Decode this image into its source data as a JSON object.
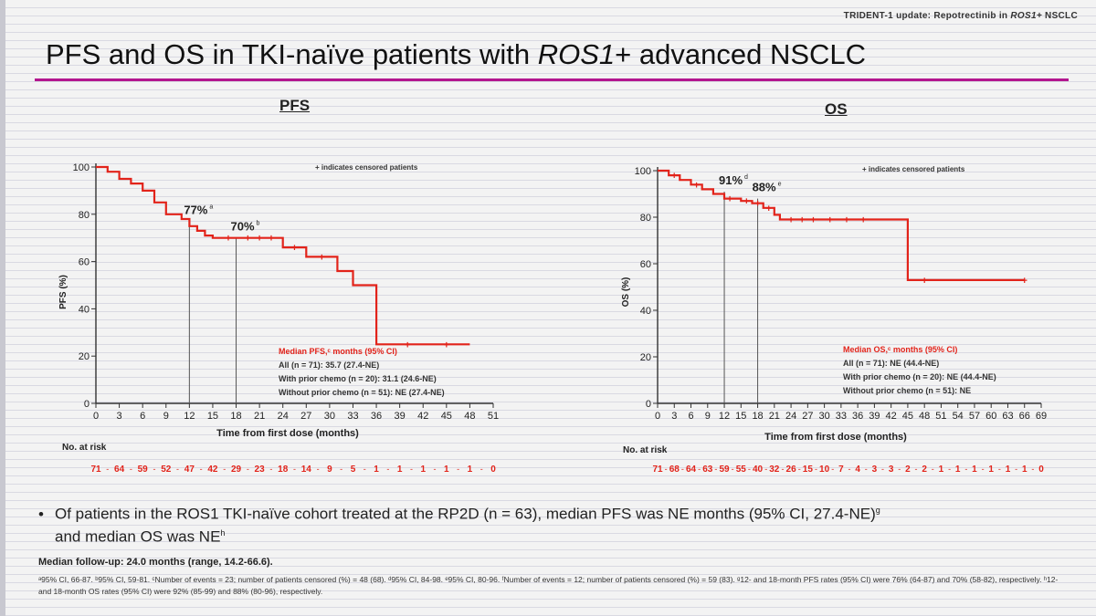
{
  "header": {
    "text_prefix": "TRIDENT-1 update: Repotrectinib in ",
    "text_italic": "ROS1+",
    "text_suffix": " NSCLC"
  },
  "title": {
    "prefix": "PFS and OS in TKI-naïve patients with ",
    "italic": "ROS1",
    "suffix": "+ advanced NSCLC"
  },
  "colors": {
    "curve": "#e2231a",
    "accent_rule": "#b3168f",
    "axis": "#333333"
  },
  "chart_data": [
    {
      "type": "line",
      "panel_title": "PFS",
      "ylabel": "PFS (%)",
      "xlabel": "Time from first dose (months)",
      "xticks": [
        0,
        3,
        6,
        9,
        12,
        15,
        18,
        21,
        24,
        27,
        30,
        33,
        36,
        39,
        42,
        45,
        48,
        51
      ],
      "yticks": [
        0,
        20,
        40,
        60,
        80,
        100
      ],
      "xlim": [
        0,
        51
      ],
      "ylim": [
        0,
        100
      ],
      "censor_note": "+ indicates censored patients",
      "x": [
        0,
        1.5,
        1.5,
        3,
        3,
        4.5,
        4.5,
        6,
        6,
        7.5,
        7.5,
        9,
        9,
        11,
        11,
        12,
        12,
        13,
        13,
        14,
        14,
        15,
        15,
        24,
        24,
        27,
        27,
        31,
        31,
        33,
        33,
        36,
        36,
        48
      ],
      "y": [
        100,
        100,
        98,
        98,
        95,
        95,
        93,
        93,
        90,
        90,
        85,
        85,
        80,
        80,
        78,
        78,
        75,
        75,
        73,
        73,
        71,
        71,
        70,
        70,
        66,
        66,
        62,
        62,
        56,
        56,
        50,
        50,
        25,
        25
      ],
      "censored": [
        {
          "x": 17,
          "y": 70
        },
        {
          "x": 19.5,
          "y": 70
        },
        {
          "x": 21,
          "y": 70
        },
        {
          "x": 22.5,
          "y": 70
        },
        {
          "x": 25.5,
          "y": 66
        },
        {
          "x": 29,
          "y": 62
        },
        {
          "x": 40,
          "y": 25
        },
        {
          "x": 45,
          "y": 25
        }
      ],
      "annotations": [
        {
          "text": "77%",
          "sup": "a",
          "x": 12,
          "y": 77,
          "line": true
        },
        {
          "text": "70%",
          "sup": "b",
          "x": 18,
          "y": 70,
          "line": true
        }
      ],
      "median_box": {
        "title": "Median PFS,ᶜ months (95% CI)",
        "rows": [
          "All (n = 71): 35.7 (27.4-NE)",
          "With prior chemo (n = 20): 31.1 (24.6-NE)",
          "Without prior chemo (n = 51): NE (27.4-NE)"
        ]
      },
      "risk_label": "No. at risk",
      "at_risk": [
        "71",
        "64",
        "59",
        "52",
        "47",
        "42",
        "29",
        "23",
        "18",
        "14",
        "9",
        "5",
        "1",
        "1",
        "1",
        "1",
        "1",
        "0"
      ]
    },
    {
      "type": "line",
      "panel_title": "OS",
      "ylabel": "OS (%)",
      "xlabel": "Time from first dose (months)",
      "xticks": [
        0,
        3,
        6,
        9,
        12,
        15,
        18,
        21,
        24,
        27,
        30,
        33,
        36,
        39,
        42,
        45,
        48,
        51,
        54,
        57,
        60,
        63,
        66,
        69
      ],
      "yticks": [
        0,
        20,
        40,
        60,
        80,
        100
      ],
      "xlim": [
        0,
        69
      ],
      "ylim": [
        0,
        100
      ],
      "censor_note": "+ indicates censored patients",
      "x": [
        0,
        2,
        2,
        4,
        4,
        6,
        6,
        8,
        8,
        10,
        10,
        12,
        12,
        15,
        15,
        17,
        17,
        19,
        19,
        21,
        21,
        22,
        22,
        45,
        45,
        66
      ],
      "y": [
        100,
        100,
        98,
        98,
        96,
        96,
        94,
        94,
        92,
        92,
        90,
        90,
        88,
        88,
        87,
        87,
        86,
        86,
        84,
        84,
        81,
        81,
        79,
        79,
        53,
        53
      ],
      "censored": [
        {
          "x": 3,
          "y": 98
        },
        {
          "x": 7,
          "y": 94
        },
        {
          "x": 13,
          "y": 88
        },
        {
          "x": 16,
          "y": 87
        },
        {
          "x": 18,
          "y": 86
        },
        {
          "x": 20,
          "y": 84
        },
        {
          "x": 24,
          "y": 79
        },
        {
          "x": 26,
          "y": 79
        },
        {
          "x": 28,
          "y": 79
        },
        {
          "x": 31,
          "y": 79
        },
        {
          "x": 34,
          "y": 79
        },
        {
          "x": 37,
          "y": 79
        },
        {
          "x": 48,
          "y": 53
        },
        {
          "x": 66,
          "y": 53
        }
      ],
      "annotations": [
        {
          "text": "91%",
          "sup": "d",
          "x": 12,
          "y": 91,
          "line": true
        },
        {
          "text": "88%",
          "sup": "e",
          "x": 18,
          "y": 88,
          "line": true
        }
      ],
      "median_box": {
        "title": "Median OS,ᶜ months (95% CI)",
        "rows": [
          "All (n = 71): NE (44.4-NE)",
          "With prior chemo (n = 20): NE (44.4-NE)",
          "Without prior chemo (n = 51): NE"
        ]
      },
      "risk_label": "No. at risk",
      "at_risk": [
        "71",
        "68",
        "64",
        "63",
        "59",
        "55",
        "40",
        "32",
        "26",
        "15",
        "10",
        "7",
        "4",
        "3",
        "3",
        "2",
        "2",
        "1",
        "1",
        "1",
        "1",
        "1",
        "1",
        "0"
      ]
    }
  ],
  "bullet": {
    "text1": "Of patients in the ROS1 TKI-naïve cohort treated at the RP2D (n = 63), median PFS was NE months (95% CI, 27.4-NE)",
    "sup1": "g",
    "text2": "and median OS was NE",
    "sup2": "h"
  },
  "followup": "Median follow-up: 24.0 months (range, 14.2-66.6).",
  "footnote": "ᵃ95% CI, 66-87. ᵇ95% CI, 59-81. ᶜNumber of events = 23; number of patients censored (%) = 48 (68). ᵈ95% CI, 84-98. ᵉ95% CI, 80-96. ᶠNumber of events = 12; number of patients censored (%) = 59 (83). ᵍ12- and 18-month PFS rates (95% CI) were 76% (64-87) and 70% (58-82), respectively. ʰ12- and 18-month OS rates (95% CI) were 92% (85-99) and 88% (80-96), respectively."
}
